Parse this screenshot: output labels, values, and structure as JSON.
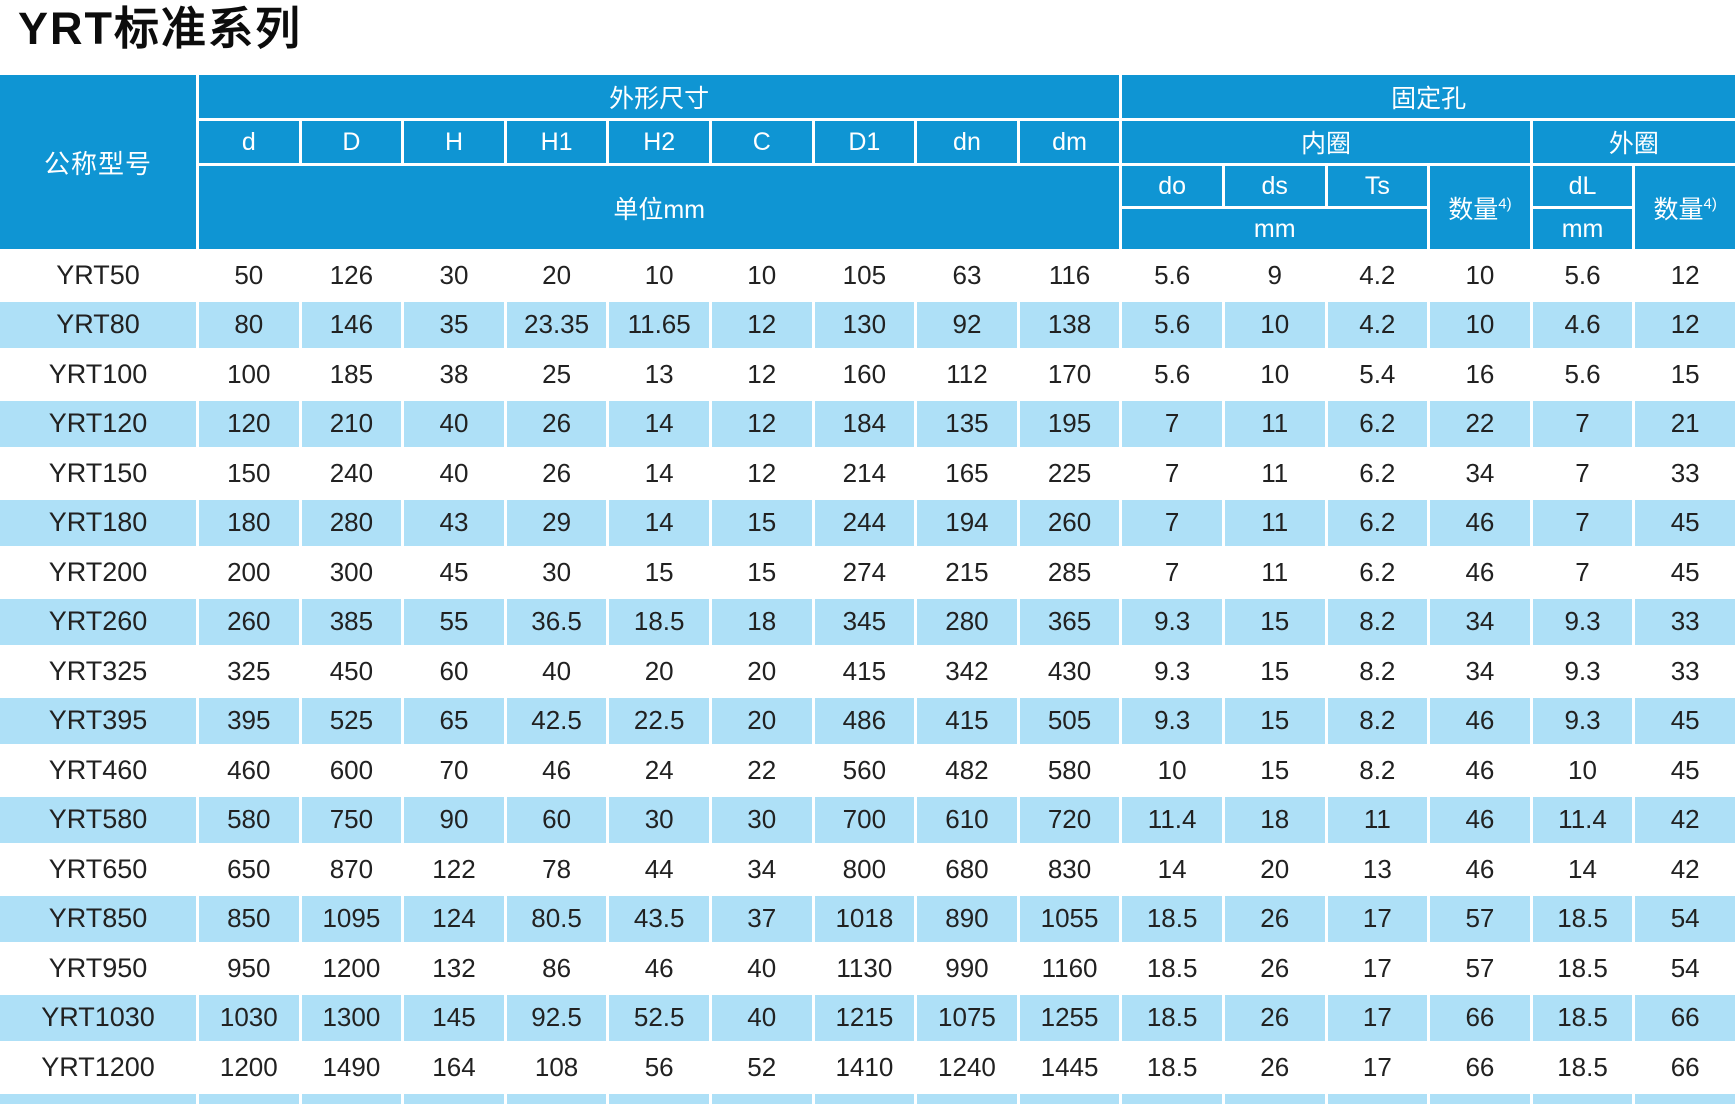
{
  "title": "YRT标准系列",
  "colors": {
    "header_blue": "#0f95d3",
    "row_alt_blue": "#aee0f7",
    "title_text": "#0c0c0c",
    "cell_text": "#212121",
    "header_text": "#ffffff"
  },
  "table": {
    "header": {
      "model_col": "公称型号",
      "dims_group": "外形尺寸",
      "holes_group": "固定孔",
      "dim_cols": [
        "d",
        "D",
        "H",
        "H1",
        "H2",
        "C",
        "D1",
        "dn",
        "dm"
      ],
      "dims_unit": "单位mm",
      "inner_ring": "内圈",
      "outer_ring": "外圈",
      "inner_cols": [
        "do",
        "ds",
        "Ts"
      ],
      "qty_label": "数量",
      "qty_sup": "4)",
      "outer_col": "dL",
      "mm_label": "mm"
    },
    "rows": [
      {
        "model": "YRT50",
        "values": [
          "50",
          "126",
          "30",
          "20",
          "10",
          "10",
          "105",
          "63",
          "116",
          "5.6",
          "9",
          "4.2",
          "10",
          "5.6",
          "12"
        ]
      },
      {
        "model": "YRT80",
        "values": [
          "80",
          "146",
          "35",
          "23.35",
          "11.65",
          "12",
          "130",
          "92",
          "138",
          "5.6",
          "10",
          "4.2",
          "10",
          "4.6",
          "12"
        ]
      },
      {
        "model": "YRT100",
        "values": [
          "100",
          "185",
          "38",
          "25",
          "13",
          "12",
          "160",
          "112",
          "170",
          "5.6",
          "10",
          "5.4",
          "16",
          "5.6",
          "15"
        ]
      },
      {
        "model": "YRT120",
        "values": [
          "120",
          "210",
          "40",
          "26",
          "14",
          "12",
          "184",
          "135",
          "195",
          "7",
          "11",
          "6.2",
          "22",
          "7",
          "21"
        ]
      },
      {
        "model": "YRT150",
        "values": [
          "150",
          "240",
          "40",
          "26",
          "14",
          "12",
          "214",
          "165",
          "225",
          "7",
          "11",
          "6.2",
          "34",
          "7",
          "33"
        ]
      },
      {
        "model": "YRT180",
        "values": [
          "180",
          "280",
          "43",
          "29",
          "14",
          "15",
          "244",
          "194",
          "260",
          "7",
          "11",
          "6.2",
          "46",
          "7",
          "45"
        ]
      },
      {
        "model": "YRT200",
        "values": [
          "200",
          "300",
          "45",
          "30",
          "15",
          "15",
          "274",
          "215",
          "285",
          "7",
          "11",
          "6.2",
          "46",
          "7",
          "45"
        ]
      },
      {
        "model": "YRT260",
        "values": [
          "260",
          "385",
          "55",
          "36.5",
          "18.5",
          "18",
          "345",
          "280",
          "365",
          "9.3",
          "15",
          "8.2",
          "34",
          "9.3",
          "33"
        ]
      },
      {
        "model": "YRT325",
        "values": [
          "325",
          "450",
          "60",
          "40",
          "20",
          "20",
          "415",
          "342",
          "430",
          "9.3",
          "15",
          "8.2",
          "34",
          "9.3",
          "33"
        ]
      },
      {
        "model": "YRT395",
        "values": [
          "395",
          "525",
          "65",
          "42.5",
          "22.5",
          "20",
          "486",
          "415",
          "505",
          "9.3",
          "15",
          "8.2",
          "46",
          "9.3",
          "45"
        ]
      },
      {
        "model": "YRT460",
        "values": [
          "460",
          "600",
          "70",
          "46",
          "24",
          "22",
          "560",
          "482",
          "580",
          "10",
          "15",
          "8.2",
          "46",
          "10",
          "45"
        ]
      },
      {
        "model": "YRT580",
        "values": [
          "580",
          "750",
          "90",
          "60",
          "30",
          "30",
          "700",
          "610",
          "720",
          "11.4",
          "18",
          "11",
          "46",
          "11.4",
          "42"
        ]
      },
      {
        "model": "YRT650",
        "values": [
          "650",
          "870",
          "122",
          "78",
          "44",
          "34",
          "800",
          "680",
          "830",
          "14",
          "20",
          "13",
          "46",
          "14",
          "42"
        ]
      },
      {
        "model": "YRT850",
        "values": [
          "850",
          "1095",
          "124",
          "80.5",
          "43.5",
          "37",
          "1018",
          "890",
          "1055",
          "18.5",
          "26",
          "17",
          "57",
          "18.5",
          "54"
        ]
      },
      {
        "model": "YRT950",
        "values": [
          "950",
          "1200",
          "132",
          "86",
          "46",
          "40",
          "1130",
          "990",
          "1160",
          "18.5",
          "26",
          "17",
          "57",
          "18.5",
          "54"
        ]
      },
      {
        "model": "YRT1030",
        "values": [
          "1030",
          "1300",
          "145",
          "92.5",
          "52.5",
          "40",
          "1215",
          "1075",
          "1255",
          "18.5",
          "26",
          "17",
          "66",
          "18.5",
          "66"
        ]
      },
      {
        "model": "YRT1200",
        "values": [
          "1200",
          "1490",
          "164",
          "108",
          "56",
          "52",
          "1410",
          "1240",
          "1445",
          "18.5",
          "26",
          "17",
          "66",
          "18.5",
          "66"
        ]
      }
    ],
    "partial_bottom_row_visible": true
  }
}
